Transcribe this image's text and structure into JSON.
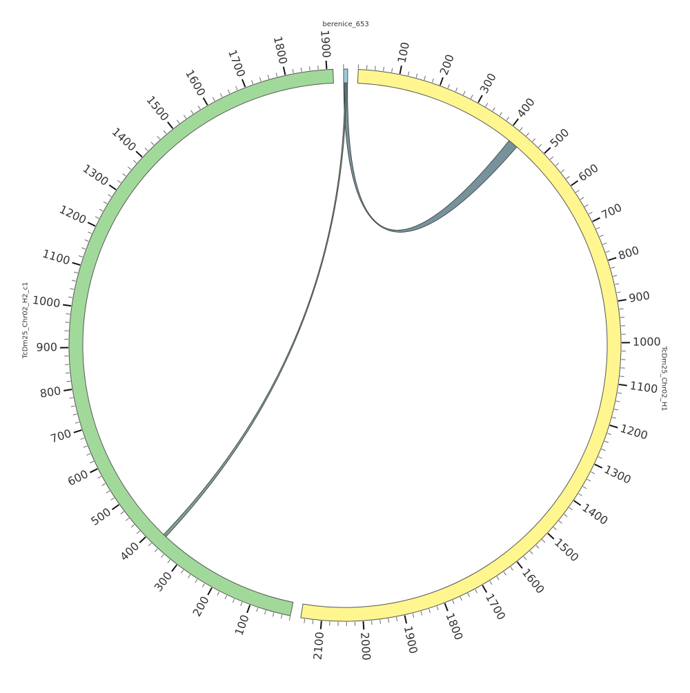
{
  "chart_data": {
    "type": "chord",
    "segments": [
      {
        "name": "berenice_653",
        "length": 10,
        "color": "#9ecae1",
        "ticks": []
      },
      {
        "name": "TcDm25_Chr02_H1",
        "length": 2150,
        "color": "#fff68f",
        "ticks": [
          100,
          200,
          300,
          400,
          500,
          600,
          700,
          800,
          900,
          1000,
          1100,
          1200,
          1300,
          1400,
          1500,
          1600,
          1700,
          1800,
          1900,
          2000,
          2100
        ]
      },
      {
        "name": "TcDm25_Chr02_H2_c1",
        "length": 1915,
        "color": "#a1d99b",
        "ticks": [
          100,
          200,
          300,
          400,
          500,
          600,
          700,
          800,
          900,
          1000,
          1100,
          1200,
          1300,
          1400,
          1500,
          1600,
          1700,
          1800,
          1900
        ]
      }
    ],
    "minor_tick_step": 20,
    "links": [
      {
        "source": 0,
        "source_range": [
          0,
          10
        ],
        "target": 1,
        "target_range": [
          415,
          440
        ],
        "color": "#5f7f8a"
      },
      {
        "source": 0,
        "source_range": [
          3,
          7
        ],
        "target": 2,
        "target_range": [
          365,
          373
        ],
        "color": "#6a8f7a"
      }
    ]
  }
}
